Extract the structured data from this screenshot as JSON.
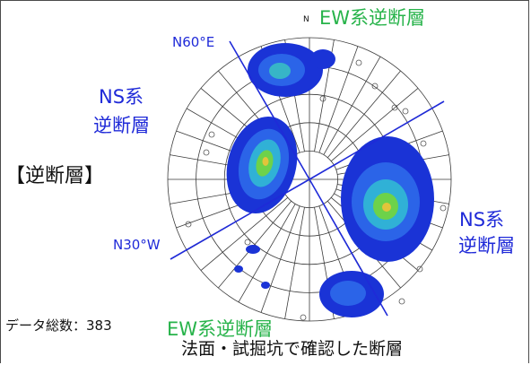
{
  "labels": {
    "north": "N",
    "ew_top": "EW系逆断層",
    "ew_bottom": "EW系逆断層",
    "n60e": "N60°E",
    "n30w": "N30°W",
    "ns_left_line1": "NS系",
    "ns_left_line2": "逆断層",
    "ns_right_line1": "NS系",
    "ns_right_line2": "逆断層",
    "section_title": "【逆断層】",
    "data_count": "データ総数：383",
    "caption": "法面・試掘坑で確認した断層"
  },
  "colors": {
    "ns_label": "#1f2ad8",
    "ew_label": "#27b34a",
    "net_lines": "#333333",
    "density_low": "#1a33d6",
    "density_high": "#6dd24a"
  }
}
